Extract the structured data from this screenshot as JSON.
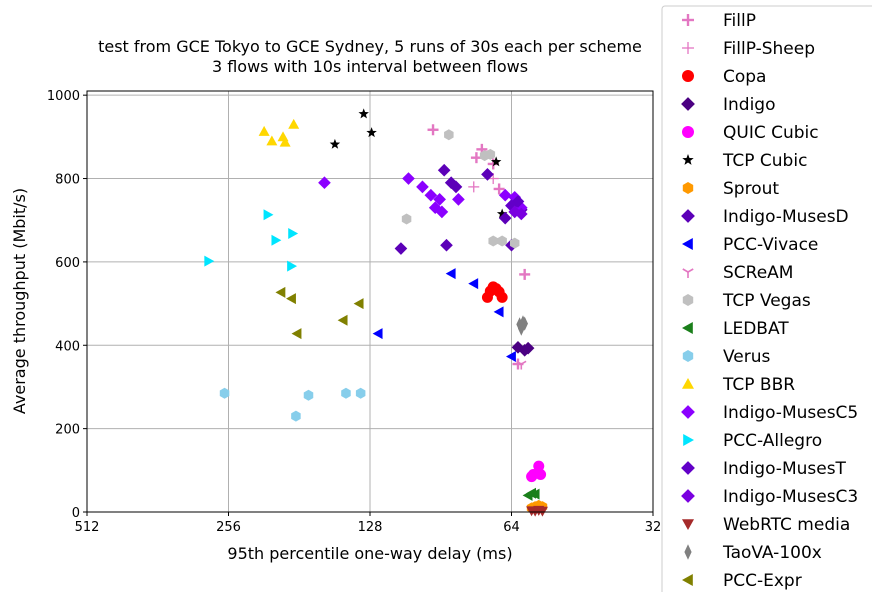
{
  "chart_data": {
    "type": "scatter",
    "title": [
      "test from GCE Tokyo to GCE Sydney, 5 runs of 30s each per scheme",
      "3 flows with 10s interval between flows"
    ],
    "xlabel": "95th percentile one-way delay (ms)",
    "ylabel": "Average throughput (Mbit/s)",
    "x_scale": "log2",
    "x_inverted": true,
    "xlim": [
      512,
      32
    ],
    "ylim": [
      0,
      1010
    ],
    "x_ticks": [
      512,
      256,
      128,
      64,
      32
    ],
    "y_ticks": [
      0,
      200,
      400,
      600,
      800,
      1000
    ],
    "grid": true,
    "legend_position": "outside-right",
    "series": [
      {
        "name": "FillP",
        "marker": "plus",
        "color": "#e377c2",
        "points": [
          [
            94,
            917
          ],
          [
            76,
            850
          ],
          [
            74,
            870
          ],
          [
            70,
            835
          ],
          [
            68,
            775
          ],
          [
            62,
            355
          ],
          [
            60,
            570
          ]
        ]
      },
      {
        "name": "FillP-Sheep",
        "marker": "plus-thin",
        "color": "#e377c2",
        "points": [
          [
            77,
            780
          ],
          [
            70,
            800
          ]
        ]
      },
      {
        "name": "Copa",
        "marker": "circle",
        "color": "#ff0000",
        "points": [
          [
            72,
            515
          ],
          [
            71,
            530
          ],
          [
            70,
            540
          ],
          [
            69,
            536
          ],
          [
            68,
            528
          ],
          [
            67,
            515
          ]
        ]
      },
      {
        "name": "Indigo",
        "marker": "diamond",
        "color": "#4b0082",
        "points": [
          [
            62,
            395
          ],
          [
            60,
            388
          ],
          [
            59,
            393
          ]
        ]
      },
      {
        "name": "QUIC Cubic",
        "marker": "circle",
        "color": "#ff00ff",
        "points": [
          [
            56,
            110
          ],
          [
            55.5,
            90
          ],
          [
            58,
            85
          ],
          [
            57.5,
            90
          ]
        ]
      },
      {
        "name": "TCP Cubic",
        "marker": "star",
        "color": "#000000",
        "points": [
          [
            132,
            955
          ],
          [
            127,
            910
          ],
          [
            152,
            882
          ],
          [
            67,
            715
          ],
          [
            69,
            840
          ]
        ]
      },
      {
        "name": "Sprout",
        "marker": "hexagon",
        "color": "#ff9900",
        "points": [
          [
            57,
            13
          ],
          [
            56,
            16
          ],
          [
            58,
            10
          ],
          [
            55,
            13
          ]
        ]
      },
      {
        "name": "Indigo-MusesD",
        "marker": "diamond",
        "color": "#5c00b8",
        "points": [
          [
            89,
            820
          ],
          [
            86,
            790
          ],
          [
            84,
            780
          ],
          [
            110,
            632
          ],
          [
            88,
            640
          ],
          [
            72,
            810
          ],
          [
            66,
            705
          ],
          [
            64,
            640
          ],
          [
            61,
            725
          ]
        ]
      },
      {
        "name": "PCC-Vivace",
        "marker": "triangle-left",
        "color": "#0000ff",
        "points": [
          [
            86,
            572
          ],
          [
            77,
            548
          ],
          [
            68,
            480
          ],
          [
            123,
            428
          ],
          [
            64,
            373
          ]
        ]
      },
      {
        "name": "SCReAM",
        "marker": "tri-down",
        "color": "#e377c2",
        "points": [
          [
            61,
            355
          ]
        ]
      },
      {
        "name": "TCP Vegas",
        "marker": "hexagon",
        "color": "#c0c0c0",
        "points": [
          [
            87,
            905
          ],
          [
            73,
            855
          ],
          [
            71,
            858
          ],
          [
            107,
            703
          ],
          [
            67,
            650
          ],
          [
            70,
            650
          ],
          [
            63,
            645
          ]
        ]
      },
      {
        "name": "LEDBAT",
        "marker": "triangle-left",
        "color": "#1a7f1a",
        "points": [
          [
            58,
            45
          ],
          [
            57,
            43
          ],
          [
            59,
            40
          ]
        ]
      },
      {
        "name": "Verus",
        "marker": "hexagon",
        "color": "#87ceeb",
        "points": [
          [
            261,
            285
          ],
          [
            173,
            280
          ],
          [
            184,
            230
          ],
          [
            144,
            285
          ],
          [
            134,
            285
          ]
        ]
      },
      {
        "name": "TCP BBR",
        "marker": "triangle-up",
        "color": "#ffd700",
        "points": [
          [
            215,
            913
          ],
          [
            207,
            890
          ],
          [
            196,
            900
          ],
          [
            194,
            887
          ],
          [
            186,
            930
          ]
        ]
      },
      {
        "name": "Indigo-MusesC5",
        "marker": "diamond",
        "color": "#8b00ff",
        "points": [
          [
            160,
            790
          ],
          [
            106,
            800
          ],
          [
            99,
            780
          ],
          [
            95,
            760
          ],
          [
            91,
            750
          ],
          [
            93,
            730
          ],
          [
            90,
            720
          ],
          [
            83,
            750
          ],
          [
            66,
            760
          ],
          [
            63,
            755
          ],
          [
            64,
            735
          ],
          [
            61,
            730
          ]
        ]
      },
      {
        "name": "PCC-Allegro",
        "marker": "triangle-right",
        "color": "#00e5ff",
        "points": [
          [
            282,
            602
          ],
          [
            211,
            713
          ],
          [
            203,
            652
          ],
          [
            187,
            668
          ],
          [
            188,
            590
          ]
        ]
      },
      {
        "name": "Indigo-MusesT",
        "marker": "diamond",
        "color": "#6200c8",
        "points": [
          [
            62,
            745
          ],
          [
            64,
            735
          ]
        ]
      },
      {
        "name": "Indigo-MusesC3",
        "marker": "diamond",
        "color": "#7a00e0",
        "points": [
          [
            63,
            720
          ],
          [
            61,
            715
          ]
        ]
      },
      {
        "name": "WebRTC media",
        "marker": "triangle-down",
        "color": "#a52a2a",
        "points": [
          [
            58,
            3
          ],
          [
            57,
            2
          ],
          [
            56,
            4
          ],
          [
            55,
            2
          ]
        ]
      },
      {
        "name": "TaoVA-100x",
        "marker": "thin-diamond",
        "color": "#808080",
        "points": [
          [
            61,
            445
          ],
          [
            60.5,
            455
          ],
          [
            61.5,
            450
          ],
          [
            61,
            440
          ],
          [
            60,
            452
          ]
        ]
      },
      {
        "name": "PCC-Expr",
        "marker": "triangle-left",
        "color": "#808000",
        "points": [
          [
            183,
            428
          ],
          [
            198,
            527
          ],
          [
            188,
            512
          ],
          [
            146,
            460
          ],
          [
            135,
            500
          ]
        ]
      }
    ]
  }
}
